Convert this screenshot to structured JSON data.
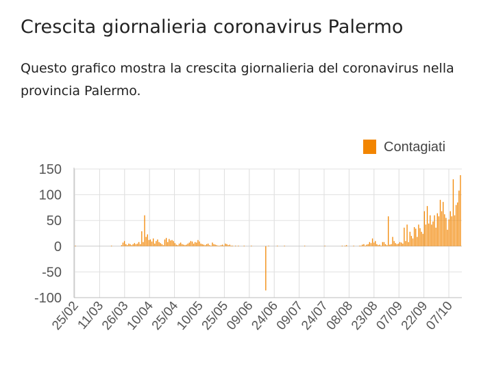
{
  "header": {
    "title": "Crescita giornalieria coronavirus Palermo",
    "subtitle": "Questo grafico mostra la crescita giornalieria del coronavirus nella provincia Palermo."
  },
  "chart_data": {
    "type": "bar",
    "legend": {
      "label": "Contagiati",
      "placement": "top-right"
    },
    "color": "#f28500",
    "ylim": [
      -100,
      150
    ],
    "yticks": [
      150,
      100,
      50,
      0,
      -50,
      -100
    ],
    "grid": true,
    "xtick_labels": [
      "25/02",
      "11/03",
      "26/03",
      "10/04",
      "25/04",
      "10/05",
      "25/05",
      "09/06",
      "24/06",
      "09/07",
      "24/07",
      "08/08",
      "23/08",
      "07/09",
      "22/09",
      "07/10"
    ],
    "series": [
      {
        "name": "Contagiati",
        "values": [
          1,
          0,
          0,
          0,
          0,
          0,
          0,
          0,
          0,
          0,
          0,
          0,
          0,
          0,
          0,
          0,
          0,
          0,
          0,
          0,
          0,
          0,
          0,
          0,
          0,
          1,
          0,
          0,
          0,
          0,
          0,
          0,
          2,
          7,
          10,
          4,
          2,
          5,
          4,
          2,
          4,
          6,
          4,
          5,
          8,
          4,
          29,
          8,
          60,
          18,
          23,
          12,
          13,
          9,
          15,
          5,
          10,
          13,
          8,
          6,
          4,
          2,
          13,
          16,
          8,
          14,
          11,
          12,
          10,
          6,
          3,
          2,
          5,
          7,
          4,
          3,
          2,
          3,
          5,
          7,
          10,
          9,
          5,
          8,
          7,
          12,
          9,
          5,
          4,
          3,
          2,
          4,
          5,
          2,
          1,
          7,
          4,
          3,
          2,
          1,
          1,
          2,
          3,
          1,
          5,
          4,
          2,
          3,
          1,
          1,
          0,
          1,
          0,
          1,
          0,
          0,
          0,
          1,
          0,
          0,
          0,
          0,
          1,
          0,
          0,
          0,
          0,
          0,
          0,
          0,
          0,
          0,
          -86,
          0,
          1,
          0,
          0,
          0,
          0,
          0,
          1,
          0,
          0,
          0,
          0,
          1,
          0,
          0,
          0,
          0,
          0,
          0,
          0,
          0,
          0,
          0,
          0,
          0,
          0,
          1,
          0,
          0,
          0,
          0,
          0,
          0,
          0,
          0,
          0,
          0,
          0,
          0,
          0,
          1,
          0,
          0,
          0,
          0,
          0,
          0,
          0,
          0,
          0,
          0,
          0,
          1,
          0,
          1,
          2,
          0,
          0,
          0,
          0,
          1,
          0,
          0,
          0,
          1,
          1,
          3,
          4,
          1,
          3,
          4,
          8,
          6,
          15,
          7,
          10,
          4,
          2,
          3,
          1,
          8,
          8,
          4,
          2,
          58,
          3,
          4,
          18,
          10,
          6,
          4,
          5,
          8,
          7,
          5,
          36,
          10,
          42,
          8,
          28,
          20,
          15,
          37,
          34,
          18,
          42,
          35,
          28,
          24,
          68,
          42,
          78,
          44,
          60,
          42,
          48,
          60,
          36,
          64,
          58,
          90,
          68,
          86,
          62,
          55,
          32,
          52,
          68,
          58,
          130,
          60,
          80,
          85,
          108,
          138
        ]
      }
    ]
  }
}
